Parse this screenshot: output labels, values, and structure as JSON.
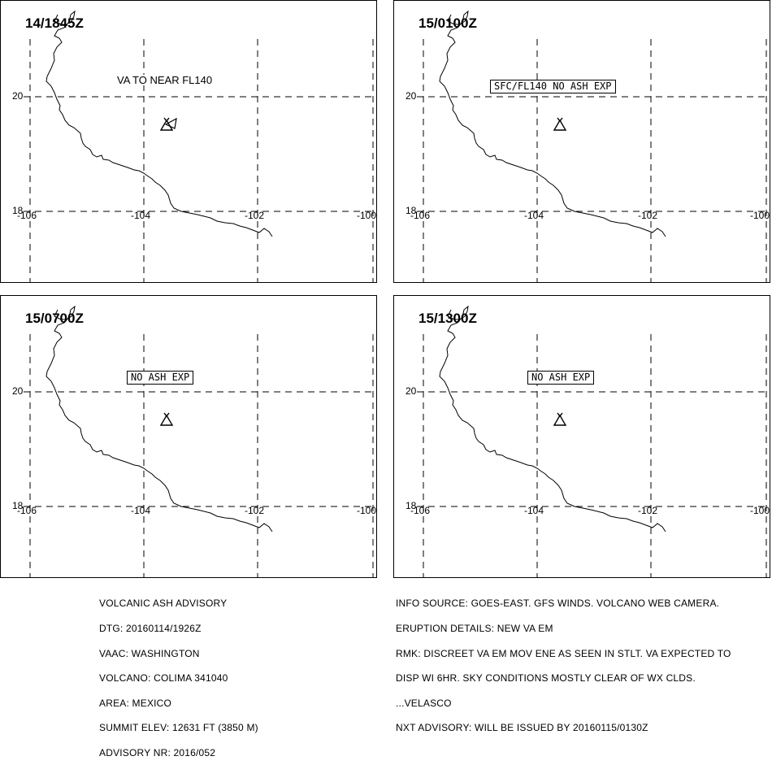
{
  "panels": [
    {
      "title": "14/1845Z",
      "note": "VA TO NEAR FL140",
      "note_boxed": false
    },
    {
      "title": "15/0100Z",
      "note": "SFC/FL140 NO ASH EXP",
      "note_boxed": true
    },
    {
      "title": "15/0700Z",
      "note": "NO ASH EXP",
      "note_boxed": true
    },
    {
      "title": "15/1300Z",
      "note": "NO ASH EXP",
      "note_boxed": true
    }
  ],
  "grid_labels": {
    "lat_20": "20",
    "lat_18": "18",
    "lon_106": "-106",
    "lon_104": "-104",
    "lon_102": "-102",
    "lon_100": "-100"
  },
  "advisory_left": [
    "VOLCANIC ASH ADVISORY",
    "DTG: 20160114/1926Z",
    "VAAC: WASHINGTON",
    "VOLCANO: COLIMA 341040",
    "AREA: MEXICO",
    "SUMMIT ELEV: 12631 FT (3850 M)",
    "ADVISORY NR: 2016/052"
  ],
  "advisory_right": [
    "INFO SOURCE: GOES-EAST. GFS WINDS. VOLCANO WEB CAMERA.",
    "ERUPTION DETAILS: NEW VA EM",
    "RMK: DISCREET VA EM MOV ENE AS SEEN IN STLT. VA EXPECTED TO",
    "DISP WI 6HR. SKY CONDITIONS MOSTLY CLEAR OF WX CLDS.",
    "...VELASCO",
    "NXT ADVISORY: WILL BE ISSUED BY 20160115/0130Z"
  ],
  "icons": {
    "volcano": "volcano-icon"
  }
}
